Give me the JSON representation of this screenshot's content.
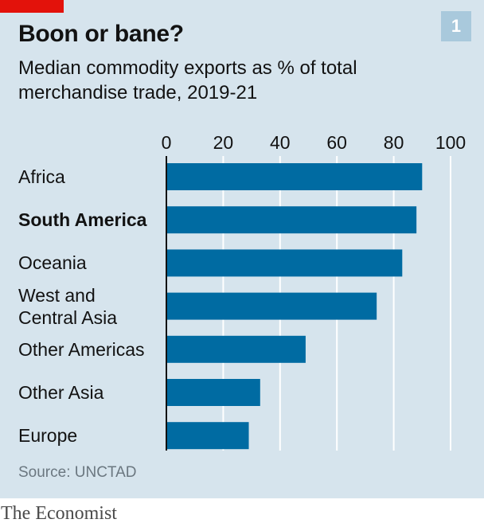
{
  "title": "Boon or bane?",
  "subtitle": "Median commodity exports as % of total merchandise trade, 2019-21",
  "chart_number": "1",
  "source": "Source: UNCTAD",
  "publisher": "The Economist",
  "colors": {
    "bar": "#006ba2",
    "background": "#d6e4ed",
    "accent": "#e3120b",
    "badge": "#a9c9dc",
    "grid": "#ffffff"
  },
  "chart_data": {
    "type": "bar",
    "orientation": "horizontal",
    "categories": [
      "Africa",
      "South America",
      "Oceania",
      "West and Central Asia",
      "Other Americas",
      "Other Asia",
      "Europe"
    ],
    "highlighted_category": "South America",
    "values": [
      90,
      88,
      83,
      74,
      49,
      33,
      29
    ],
    "xlim": [
      0,
      100
    ],
    "xticks": [
      "0",
      "20",
      "40",
      "60",
      "80",
      "100"
    ],
    "grid": true
  }
}
